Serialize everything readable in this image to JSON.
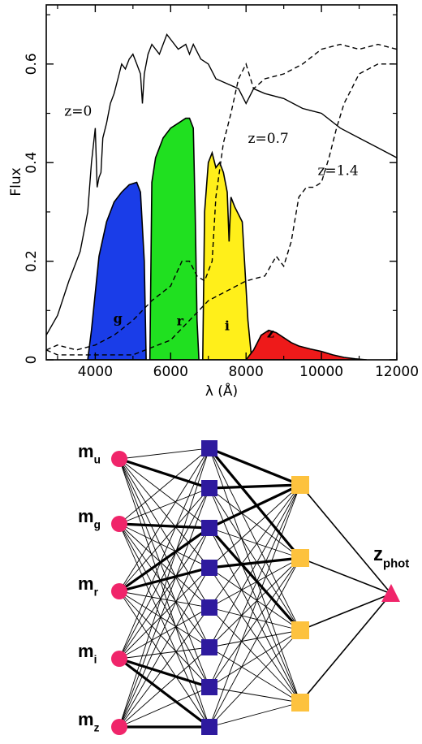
{
  "chart_data": {
    "type": "line",
    "xlabel": "λ (Å)",
    "ylabel": "Flux",
    "xlim": [
      2700,
      12000
    ],
    "ylim": [
      0,
      0.72
    ],
    "x_ticks": [
      4000,
      6000,
      8000,
      10000,
      12000
    ],
    "y_ticks": [
      0,
      0.2,
      0.4,
      0.6
    ],
    "x_tick_labels": [
      "4000",
      "6000",
      "8000",
      "10000",
      "12000"
    ],
    "y_tick_labels": [
      "0",
      "0.2",
      "0.4",
      "0.6"
    ],
    "series": [
      {
        "name": "z=0",
        "style": "solid",
        "x": [
          2700,
          3000,
          3300,
          3500,
          3600,
          3700,
          3800,
          3900,
          4000,
          4050,
          4100,
          4150,
          4200,
          4300,
          4400,
          4500,
          4600,
          4700,
          4800,
          4900,
          5000,
          5100,
          5200,
          5250,
          5300,
          5400,
          5500,
          5700,
          5900,
          6000,
          6200,
          6400,
          6500,
          6600,
          6800,
          7000,
          7200,
          7500,
          7800,
          8000,
          8200,
          8500,
          9000,
          9500,
          10000,
          10500,
          11000,
          11500,
          12000
        ],
        "y": [
          0.05,
          0.09,
          0.16,
          0.2,
          0.22,
          0.26,
          0.3,
          0.4,
          0.47,
          0.35,
          0.37,
          0.38,
          0.45,
          0.48,
          0.52,
          0.54,
          0.57,
          0.6,
          0.59,
          0.61,
          0.62,
          0.6,
          0.58,
          0.52,
          0.58,
          0.62,
          0.64,
          0.62,
          0.66,
          0.65,
          0.63,
          0.64,
          0.62,
          0.64,
          0.61,
          0.6,
          0.57,
          0.56,
          0.55,
          0.52,
          0.55,
          0.54,
          0.53,
          0.51,
          0.5,
          0.47,
          0.45,
          0.43,
          0.41
        ]
      },
      {
        "name": "z=0.7",
        "style": "dashed",
        "x": [
          2700,
          3000,
          3500,
          4000,
          4500,
          5000,
          5500,
          6000,
          6300,
          6500,
          6700,
          6900,
          7100,
          7200,
          7400,
          7600,
          7800,
          8000,
          8200,
          8500,
          9000,
          9500,
          10000,
          10500,
          11000,
          11500,
          12000
        ],
        "y": [
          0.02,
          0.03,
          0.02,
          0.03,
          0.05,
          0.08,
          0.12,
          0.15,
          0.2,
          0.2,
          0.17,
          0.16,
          0.2,
          0.33,
          0.44,
          0.5,
          0.57,
          0.6,
          0.55,
          0.57,
          0.58,
          0.6,
          0.63,
          0.64,
          0.63,
          0.64,
          0.63
        ]
      },
      {
        "name": "z=1.4",
        "style": "dashed",
        "x": [
          2700,
          3000,
          3500,
          4000,
          5000,
          6000,
          7000,
          8000,
          8500,
          8800,
          9000,
          9200,
          9400,
          9600,
          9800,
          10000,
          10200,
          10400,
          10600,
          10800,
          11000,
          11500,
          12000
        ],
        "y": [
          0.02,
          0.01,
          0.01,
          0.01,
          0.01,
          0.04,
          0.12,
          0.16,
          0.17,
          0.21,
          0.19,
          0.24,
          0.33,
          0.35,
          0.35,
          0.36,
          0.41,
          0.47,
          0.52,
          0.55,
          0.58,
          0.6,
          0.6
        ]
      }
    ],
    "filters": [
      {
        "name": "g",
        "color": "#1a3de8",
        "x": [
          3800,
          3900,
          4100,
          4300,
          4500,
          4700,
          4900,
          5100,
          5200,
          5300,
          5350
        ],
        "y": [
          0,
          0.06,
          0.21,
          0.28,
          0.32,
          0.34,
          0.355,
          0.36,
          0.34,
          0.2,
          0
        ]
      },
      {
        "name": "r",
        "color": "#20e020",
        "x": [
          5450,
          5500,
          5600,
          5800,
          6000,
          6200,
          6400,
          6500,
          6600,
          6650,
          6700,
          6750
        ],
        "y": [
          0,
          0.36,
          0.41,
          0.45,
          0.47,
          0.48,
          0.49,
          0.49,
          0.47,
          0.3,
          0.08,
          0
        ]
      },
      {
        "name": "i",
        "color": "#ffef1a",
        "x": [
          6850,
          6900,
          7000,
          7100,
          7200,
          7300,
          7400,
          7500,
          7550,
          7600,
          7700,
          7900,
          8050,
          8150
        ],
        "y": [
          0,
          0.3,
          0.4,
          0.42,
          0.39,
          0.4,
          0.38,
          0.34,
          0.24,
          0.33,
          0.31,
          0.28,
          0.08,
          0
        ]
      },
      {
        "name": "z",
        "color": "#ee1a1a",
        "x": [
          8000,
          8200,
          8400,
          8600,
          8800,
          9000,
          9200,
          9400,
          9700,
          10000,
          10300,
          10600,
          10900,
          11200
        ],
        "y": [
          0,
          0.02,
          0.05,
          0.06,
          0.055,
          0.045,
          0.035,
          0.028,
          0.022,
          0.017,
          0.01,
          0.005,
          0.002,
          0
        ]
      }
    ],
    "curve_labels": [
      "z=0",
      "z=0.7",
      "z=1.4"
    ],
    "filter_labels": [
      "g",
      "r",
      "i",
      "z"
    ],
    "grid": false
  },
  "network": {
    "input_labels": [
      {
        "base": "m",
        "sub": "u"
      },
      {
        "base": "m",
        "sub": "g"
      },
      {
        "base": "m",
        "sub": "r"
      },
      {
        "base": "m",
        "sub": "i"
      },
      {
        "base": "m",
        "sub": "z"
      }
    ],
    "hidden1_count": 8,
    "hidden2_count": 4,
    "output_label": {
      "base": "z",
      "sub": "phot"
    },
    "colors": {
      "input": "#f0256a",
      "hidden1": "#2e1a9e",
      "hidden2": "#fdc23e",
      "output": "#f0256a",
      "edge": "#000000"
    }
  }
}
